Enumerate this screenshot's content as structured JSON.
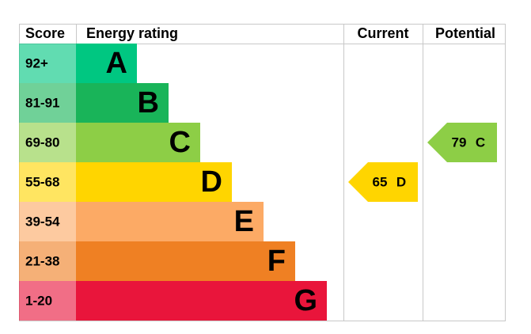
{
  "header": {
    "score": "Score",
    "energy_rating": "Energy rating",
    "current": "Current",
    "potential": "Potential"
  },
  "bands": [
    {
      "score": "92+",
      "letter": "A",
      "color": "#00c781"
    },
    {
      "score": "81-91",
      "letter": "B",
      "color": "#19b459"
    },
    {
      "score": "69-80",
      "letter": "C",
      "color": "#8dce46"
    },
    {
      "score": "55-68",
      "letter": "D",
      "color": "#ffd500"
    },
    {
      "score": "39-54",
      "letter": "E",
      "color": "#fcaa65"
    },
    {
      "score": "21-38",
      "letter": "F",
      "color": "#ef8023"
    },
    {
      "score": "1-20",
      "letter": "G",
      "color": "#e9153b"
    }
  ],
  "current": {
    "value": 65,
    "letter": "D"
  },
  "potential": {
    "value": 79,
    "letter": "C"
  }
}
